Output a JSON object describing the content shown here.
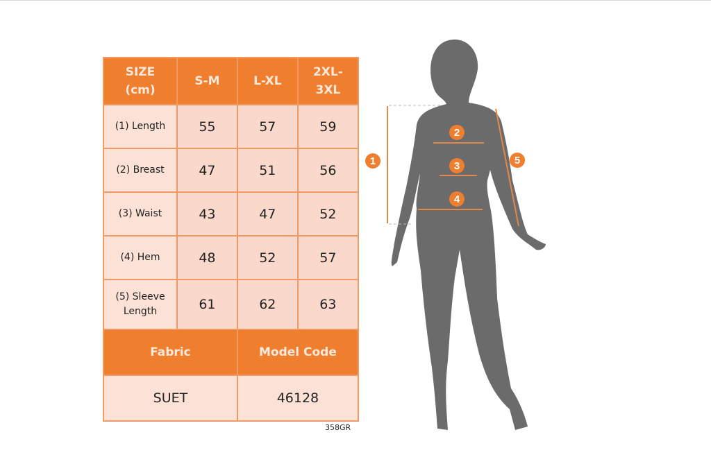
{
  "table": {
    "headers": [
      "SIZE\n(cm)",
      "S-M",
      "L-XL",
      "2XL-\n3XL"
    ],
    "header_lines": [
      [
        "SIZE",
        "(cm)"
      ],
      [
        "S-M"
      ],
      [
        "L-XL"
      ],
      [
        "2XL-",
        "3XL"
      ]
    ],
    "rows": [
      {
        "label": [
          "(1) Length"
        ],
        "values": [
          "55",
          "57",
          "59"
        ]
      },
      {
        "label": [
          "(2) Breast"
        ],
        "values": [
          "47",
          "51",
          "56"
        ]
      },
      {
        "label": [
          "(3) Waist"
        ],
        "values": [
          "43",
          "47",
          "52"
        ]
      },
      {
        "label": [
          "(4) Hem"
        ],
        "values": [
          "48",
          "52",
          "57"
        ]
      },
      {
        "label": [
          "(5) Sleeve",
          "Length"
        ],
        "values": [
          "61",
          "62",
          "63"
        ]
      }
    ],
    "footer_headers": [
      "Fabric",
      "Model Code"
    ],
    "footer_values": [
      "SUET",
      "46128"
    ]
  },
  "product_code": "358GR",
  "figure": {
    "markers": [
      "1",
      "2",
      "3",
      "4",
      "5"
    ]
  },
  "colors": {
    "accent": "#ef7e2e",
    "cell": "#fad9cc",
    "silhouette": "#6b6b6b"
  }
}
